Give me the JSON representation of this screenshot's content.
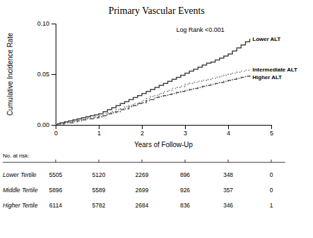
{
  "chart_data": {
    "type": "line",
    "title": "Primary Vascular Events",
    "x_label": "Years of Follow-Up",
    "y_label": "Cumulative Incidence Rate",
    "annotation": "Log Rank <0.001",
    "xlim": [
      0,
      5
    ],
    "ylim": [
      0,
      0.1
    ],
    "xticks": [
      0,
      1,
      2,
      3,
      4,
      5
    ],
    "yticks": [
      {
        "value": 0,
        "label": "0.00"
      },
      {
        "value": 0.05,
        "label": "0.05"
      },
      {
        "value": 0.1,
        "label": "0.10"
      }
    ],
    "x": [
      0,
      0.05,
      0.1,
      0.2,
      0.3,
      0.4,
      0.5,
      0.6,
      0.7,
      0.8,
      0.9,
      1.0,
      1.1,
      1.2,
      1.3,
      1.4,
      1.5,
      1.6,
      1.7,
      1.8,
      1.9,
      2.0,
      2.1,
      2.2,
      2.3,
      2.4,
      2.5,
      2.6,
      2.7,
      2.8,
      2.9,
      3.0,
      3.1,
      3.2,
      3.3,
      3.4,
      3.5,
      3.6,
      3.7,
      3.8,
      3.9,
      4.0,
      4.1,
      4.2,
      4.3,
      4.4,
      4.5
    ],
    "series": [
      {
        "name": "Lower ALT",
        "color": "#444444",
        "line_style": "solid",
        "values": [
          0.0,
          0.001,
          0.002,
          0.003,
          0.004,
          0.005,
          0.006,
          0.007,
          0.008,
          0.009,
          0.01,
          0.011,
          0.013,
          0.015,
          0.017,
          0.019,
          0.021,
          0.023,
          0.025,
          0.027,
          0.029,
          0.031,
          0.033,
          0.035,
          0.037,
          0.039,
          0.041,
          0.043,
          0.045,
          0.047,
          0.049,
          0.051,
          0.053,
          0.055,
          0.057,
          0.059,
          0.061,
          0.062,
          0.064,
          0.066,
          0.068,
          0.07,
          0.073,
          0.076,
          0.079,
          0.082,
          0.085
        ]
      },
      {
        "name": "Intermediate ALT",
        "color": "#888888",
        "line_style": "dotted",
        "values": [
          0.0,
          0.001,
          0.001,
          0.002,
          0.003,
          0.004,
          0.005,
          0.006,
          0.007,
          0.007,
          0.008,
          0.009,
          0.011,
          0.012,
          0.013,
          0.015,
          0.016,
          0.018,
          0.019,
          0.021,
          0.022,
          0.024,
          0.026,
          0.028,
          0.029,
          0.031,
          0.033,
          0.034,
          0.036,
          0.037,
          0.038,
          0.04,
          0.041,
          0.042,
          0.043,
          0.044,
          0.045,
          0.046,
          0.047,
          0.048,
          0.049,
          0.05,
          0.051,
          0.052,
          0.053,
          0.054,
          0.055
        ]
      },
      {
        "name": "Higher ALT",
        "color": "#555555",
        "line_style": "dashdot",
        "values": [
          0.0,
          0.001,
          0.001,
          0.002,
          0.002,
          0.003,
          0.004,
          0.005,
          0.006,
          0.006,
          0.007,
          0.008,
          0.009,
          0.011,
          0.012,
          0.013,
          0.015,
          0.016,
          0.018,
          0.019,
          0.021,
          0.022,
          0.024,
          0.025,
          0.027,
          0.028,
          0.029,
          0.03,
          0.031,
          0.032,
          0.033,
          0.034,
          0.035,
          0.036,
          0.037,
          0.038,
          0.039,
          0.04,
          0.041,
          0.042,
          0.043,
          0.044,
          0.045,
          0.046,
          0.047,
          0.048,
          0.049
        ]
      }
    ],
    "at_risk_label": "No. at risk:",
    "at_risk_times": [
      0,
      1,
      2,
      3,
      4,
      5
    ],
    "at_risk": [
      {
        "name": "Lower Tertile",
        "values": [
          5505,
          5120,
          2269,
          896,
          348,
          0
        ]
      },
      {
        "name": "Middle Tertile",
        "values": [
          5896,
          5589,
          2699,
          926,
          357,
          0
        ]
      },
      {
        "name": "Higher Tertile",
        "values": [
          6114,
          5782,
          2684,
          836,
          346,
          1
        ]
      }
    ]
  }
}
